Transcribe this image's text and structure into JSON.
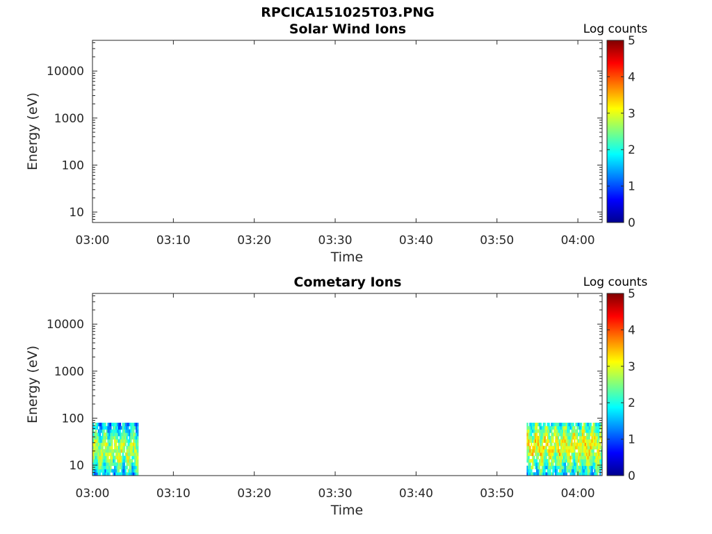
{
  "figure": {
    "title": "RPCICA151025T03.PNG"
  },
  "colors": {
    "axis": "#262626",
    "background": "#ffffff",
    "colormap": "jet"
  },
  "chart_data": [
    {
      "type": "heatmap",
      "title": "Solar Wind Ions",
      "xlabel": "Time",
      "ylabel": "Energy (eV)",
      "x_ticks": [
        "03:00",
        "03:10",
        "03:20",
        "03:30",
        "03:40",
        "03:50",
        "04:00"
      ],
      "xlim": [
        "03:00",
        "04:03"
      ],
      "y_scale": "log",
      "y_ticks": [
        {
          "value": 10,
          "label": "10"
        },
        {
          "value": 100,
          "label": "100"
        },
        {
          "value": 1000,
          "label": "1000"
        },
        {
          "value": 10000,
          "label": "10000"
        }
      ],
      "ylim": [
        6,
        45000
      ],
      "colorbar": {
        "label": "Log counts",
        "range": [
          0,
          5
        ],
        "ticks": [
          "0",
          "1",
          "2",
          "3",
          "4",
          "5"
        ]
      },
      "data_blocks": []
    },
    {
      "type": "heatmap",
      "title": "Cometary Ions",
      "xlabel": "Time",
      "ylabel": "Energy (eV)",
      "x_ticks": [
        "03:00",
        "03:10",
        "03:20",
        "03:30",
        "03:40",
        "03:50",
        "04:00"
      ],
      "xlim": [
        "03:00",
        "04:03"
      ],
      "y_scale": "log",
      "y_ticks": [
        {
          "value": 10,
          "label": "10"
        },
        {
          "value": 100,
          "label": "100"
        },
        {
          "value": 1000,
          "label": "1000"
        },
        {
          "value": 10000,
          "label": "10000"
        }
      ],
      "ylim": [
        6,
        45000
      ],
      "colorbar": {
        "label": "Log counts",
        "range": [
          0,
          5
        ],
        "ticks": [
          "0",
          "1",
          "2",
          "3",
          "4",
          "5"
        ]
      },
      "data_blocks": [
        {
          "t_start": "03:00",
          "t_end": "03:05:40",
          "e_min": 6,
          "e_max": 80,
          "peak_log_counts": 3.0,
          "peak_energy_ev": 20
        },
        {
          "t_start": "03:53:40",
          "t_end": "04:03",
          "e_min": 6,
          "e_max": 80,
          "peak_log_counts": 3.3,
          "peak_energy_ev": 25
        }
      ]
    }
  ]
}
